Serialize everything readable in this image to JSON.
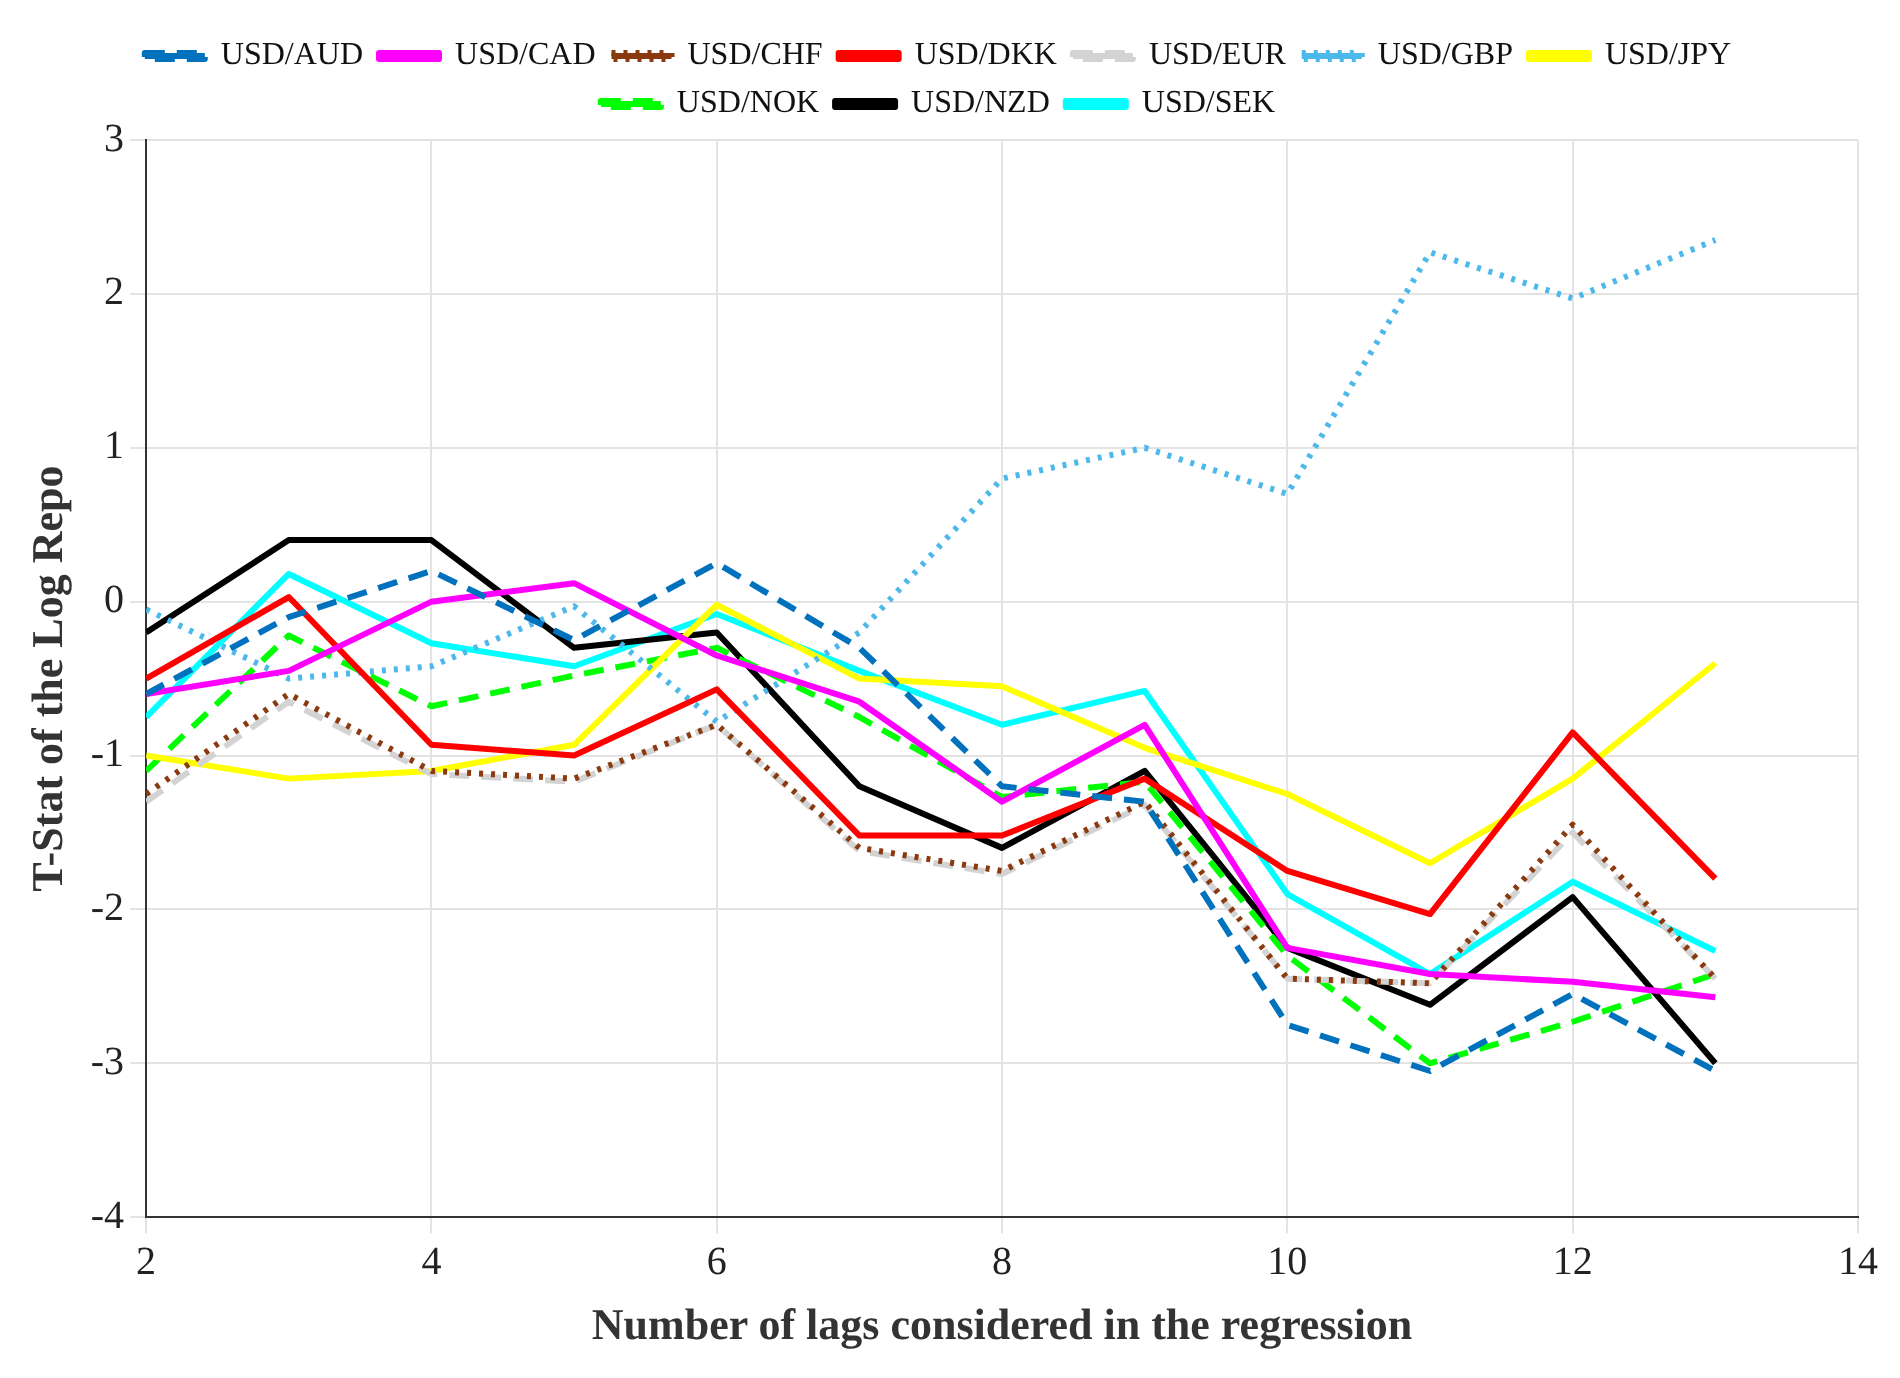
{
  "chart_data": {
    "type": "line",
    "xlabel": "Number of lags considered in the regression",
    "ylabel": "T-Stat of the Log Repo",
    "x": [
      2,
      3,
      4,
      5,
      6,
      7,
      8,
      9,
      10,
      11,
      12,
      13
    ],
    "xlim": [
      2,
      14
    ],
    "xticks": [
      2,
      4,
      6,
      8,
      10,
      12,
      14
    ],
    "ylim": [
      -4,
      3
    ],
    "yticks": [
      -4,
      -3,
      -2,
      -1,
      0,
      1,
      2,
      3
    ],
    "grid": true,
    "legend": "top",
    "series": [
      {
        "name": "USD/AUD",
        "color": "#0072bd",
        "line_style": "dashed",
        "values": [
          -0.6,
          -0.1,
          0.2,
          -0.25,
          0.25,
          -0.3,
          -1.2,
          -1.3,
          -2.75,
          -3.05,
          -2.55,
          -3.05
        ]
      },
      {
        "name": "USD/CAD",
        "color": "#ff00ff",
        "line_style": "solid",
        "values": [
          -0.6,
          -0.45,
          0,
          0.12,
          -0.35,
          -0.65,
          -1.3,
          -0.8,
          -2.25,
          -2.42,
          -2.47,
          -2.57
        ]
      },
      {
        "name": "USD/CHF",
        "color": "#8b3a0f",
        "line_style": "dotted",
        "values": [
          -1.25,
          -0.6,
          -1.1,
          -1.15,
          -0.8,
          -1.6,
          -1.75,
          -1.3,
          -2.45,
          -2.48,
          -1.45,
          -2.45
        ]
      },
      {
        "name": "USD/DKK",
        "color": "#ff0000",
        "line_style": "solid",
        "values": [
          -0.5,
          0.03,
          -0.93,
          -1.0,
          -0.57,
          -1.52,
          -1.52,
          -1.15,
          -1.75,
          -2.03,
          -0.85,
          -1.8
        ]
      },
      {
        "name": "USD/EUR",
        "color": "#d3d3d3",
        "line_style": "dashed",
        "values": [
          -1.3,
          -0.65,
          -1.12,
          -1.17,
          -0.8,
          -1.62,
          -1.77,
          -1.32,
          -2.45,
          -2.48,
          -1.5,
          -2.45
        ]
      },
      {
        "name": "USD/GBP",
        "color": "#4db8ea",
        "line_style": "dotted",
        "values": [
          -0.05,
          -0.5,
          -0.42,
          -0.03,
          -0.78,
          -0.2,
          0.8,
          1.0,
          0.7,
          2.27,
          1.97,
          2.35
        ]
      },
      {
        "name": "USD/JPY",
        "color": "#ffff00",
        "line_style": "solid",
        "values": [
          -1.0,
          -1.15,
          -1.1,
          -0.93,
          -0.02,
          -0.5,
          -0.55,
          -0.95,
          -1.25,
          -1.7,
          -1.15,
          -0.4
        ]
      },
      {
        "name": "USD/NOK",
        "color": "#00ff00",
        "line_style": "dashed",
        "values": [
          -1.1,
          -0.22,
          -0.68,
          -0.48,
          -0.3,
          -0.75,
          -1.27,
          -1.17,
          -2.3,
          -3.0,
          -2.73,
          -2.42
        ]
      },
      {
        "name": "USD/NZD",
        "color": "#000000",
        "line_style": "solid",
        "values": [
          -0.2,
          0.4,
          0.4,
          -0.3,
          -0.2,
          -1.2,
          -1.6,
          -1.1,
          -2.25,
          -2.62,
          -1.92,
          -3.0
        ]
      },
      {
        "name": "USD/SEK",
        "color": "#00ffff",
        "line_style": "solid",
        "values": [
          -0.75,
          0.18,
          -0.27,
          -0.42,
          -0.08,
          -0.45,
          -0.8,
          -0.58,
          -1.9,
          -2.42,
          -1.82,
          -2.27
        ]
      }
    ]
  }
}
